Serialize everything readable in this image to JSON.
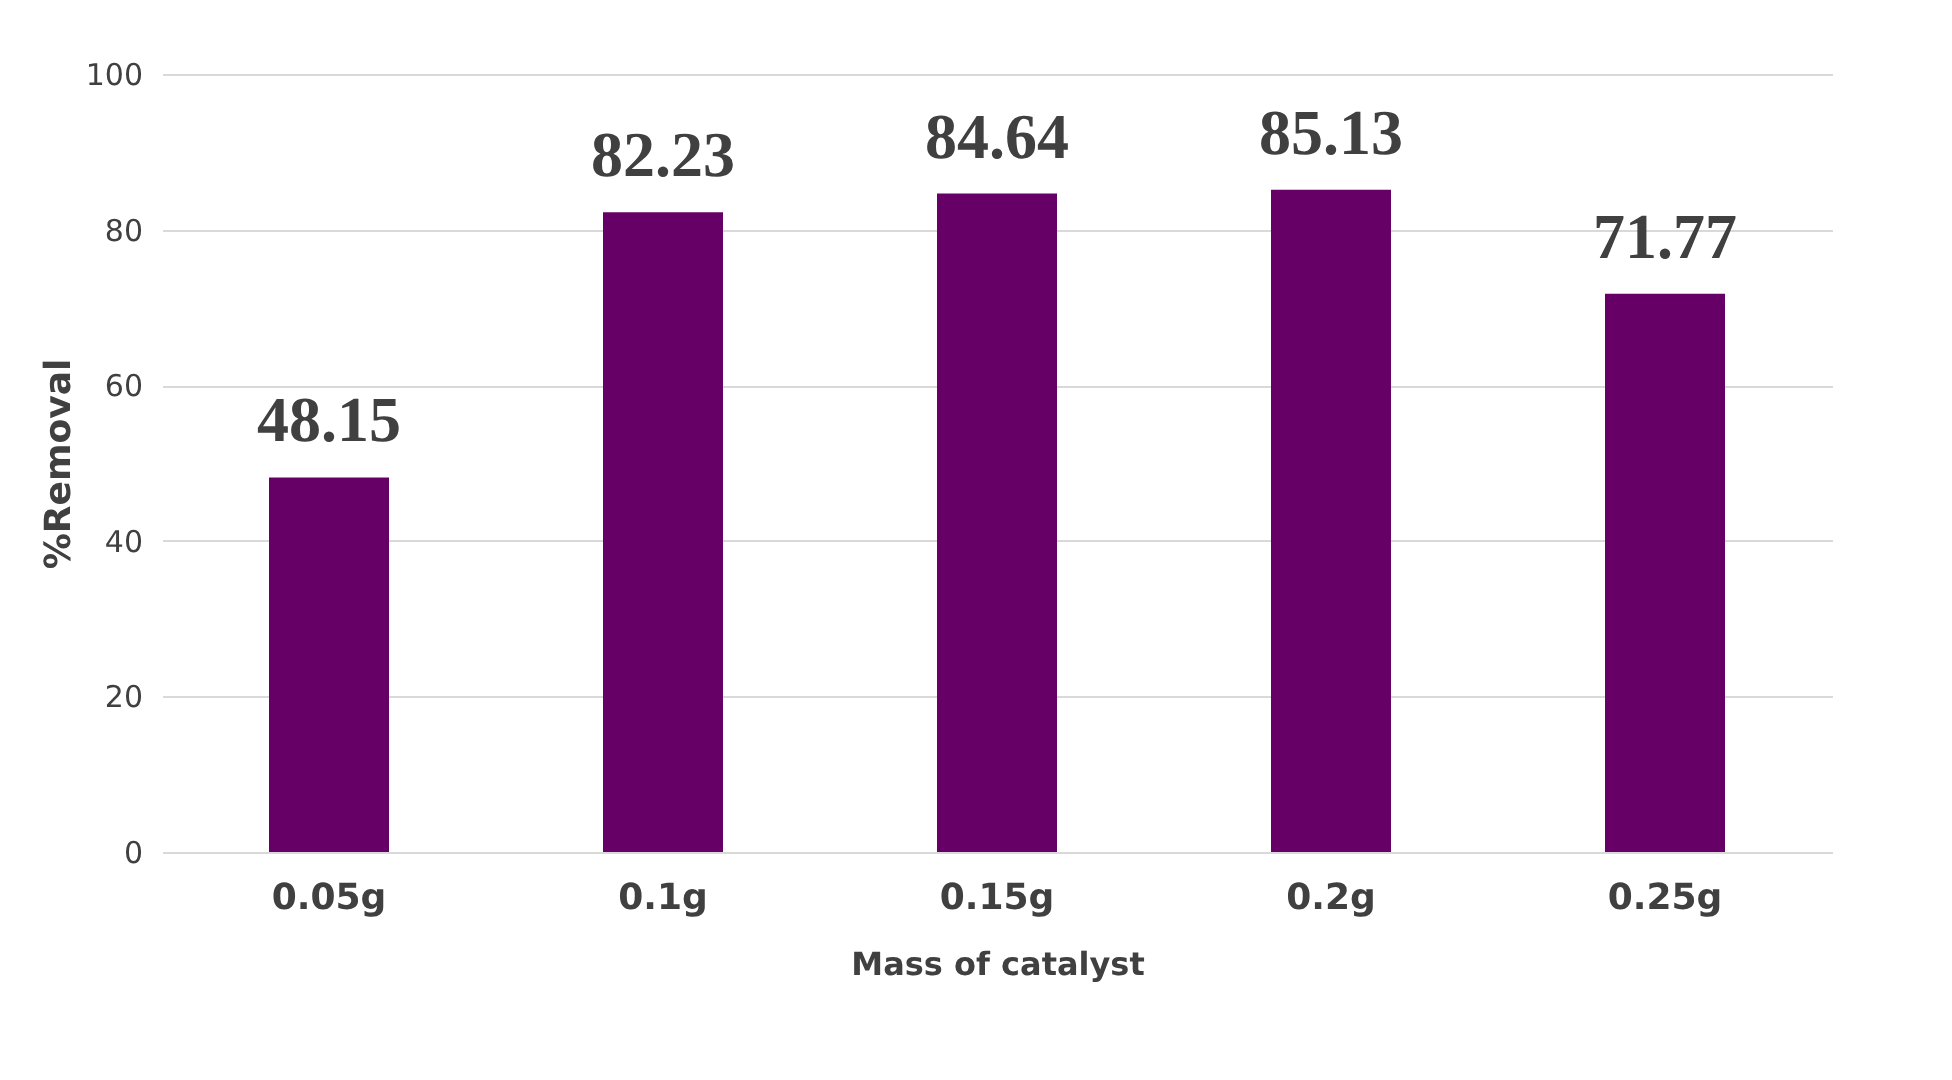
{
  "chart_data": {
    "type": "bar",
    "xlabel": "Mass of catalyst",
    "ylabel": "%Removal",
    "categories": [
      "0.05g",
      "0.1g",
      "0.15g",
      "0.2g",
      "0.25g"
    ],
    "values": [
      48.15,
      82.23,
      84.64,
      85.13,
      71.77
    ],
    "color": "#660066",
    "ylim": [
      0,
      100
    ],
    "yticks": [
      0,
      20,
      40,
      60,
      80,
      100
    ],
    "grid": "y",
    "data_labels": true
  }
}
